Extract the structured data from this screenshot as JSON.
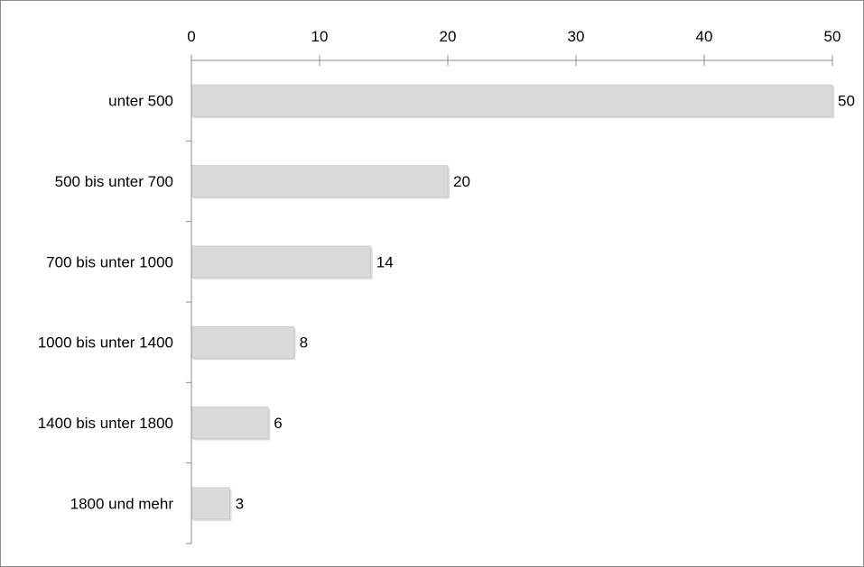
{
  "chart_data": {
    "type": "bar",
    "orientation": "horizontal",
    "categories": [
      "unter 500",
      "500 bis unter 700",
      "700 bis unter 1000",
      "1000 bis unter 1400",
      "1400 bis unter 1800",
      "1800 und mehr"
    ],
    "values": [
      50,
      20,
      14,
      8,
      6,
      3
    ],
    "xlim": [
      0,
      50
    ],
    "xticks": [
      0,
      10,
      20,
      30,
      40,
      50
    ],
    "axis_position": "top",
    "grid": false,
    "legend": "none",
    "bar_color": "#d9d9d9",
    "bar_edge_color": "#c4c4c4",
    "axis_color": "#8c8c8c",
    "title": "",
    "xlabel": "",
    "ylabel": ""
  }
}
